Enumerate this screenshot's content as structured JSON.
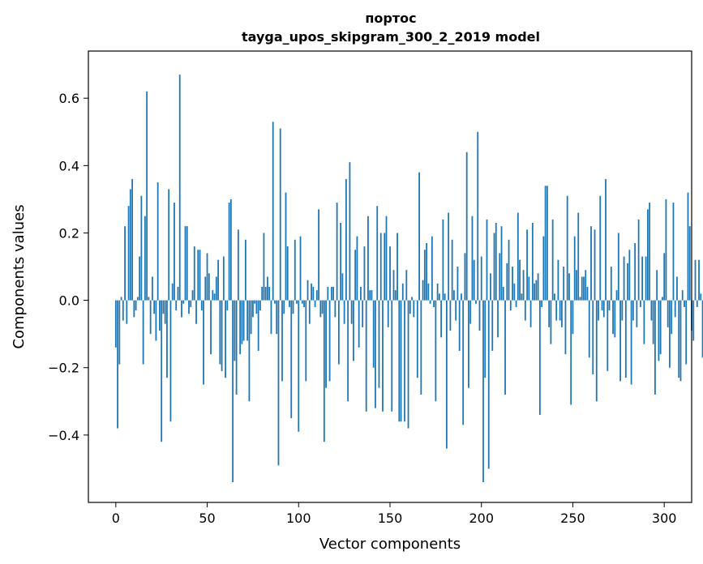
{
  "chart_data": {
    "type": "bar",
    "title": "портос",
    "subtitle": "tayga_upos_skipgram_300_2_2019 model",
    "xlabel": "Vector components",
    "ylabel": "Components values",
    "xlim": [
      -15,
      315
    ],
    "ylim": [
      -0.6,
      0.74
    ],
    "xticks": [
      0,
      50,
      100,
      150,
      200,
      250,
      300
    ],
    "yticks": [
      -0.4,
      -0.2,
      0.0,
      0.2,
      0.4,
      0.6
    ],
    "ytick_labels": [
      "−0.4",
      "−0.2",
      "0.0",
      "0.2",
      "0.4",
      "0.6"
    ],
    "bar_color": "#1f77b4",
    "series": [
      {
        "name": "портос",
        "values": [
          -0.14,
          -0.38,
          -0.19,
          0.01,
          -0.06,
          0.22,
          -0.07,
          0.28,
          0.33,
          0.36,
          -0.05,
          -0.03,
          0.01,
          0.13,
          0.31,
          -0.19,
          0.25,
          0.62,
          0.01,
          -0.1,
          0.07,
          -0.04,
          -0.12,
          0.35,
          -0.09,
          -0.42,
          -0.04,
          -0.07,
          -0.23,
          0.33,
          -0.36,
          0.05,
          0.29,
          -0.03,
          0.04,
          0.67,
          -0.05,
          -0.01,
          0.22,
          0.22,
          -0.04,
          -0.02,
          0.03,
          0.16,
          -0.07,
          0.15,
          0.15,
          -0.03,
          -0.25,
          0.07,
          0.14,
          0.08,
          -0.16,
          0.03,
          0.02,
          0.07,
          0.12,
          -0.19,
          -0.21,
          0.13,
          -0.23,
          -0.03,
          0.29,
          0.3,
          -0.54,
          -0.18,
          -0.28,
          0.21,
          -0.16,
          -0.13,
          -0.12,
          0.18,
          -0.12,
          -0.3,
          -0.1,
          -0.05,
          -0.01,
          -0.04,
          -0.15,
          -0.03,
          0.04,
          0.2,
          0.04,
          0.07,
          0.04,
          -0.1,
          0.53,
          -0.01,
          -0.1,
          -0.49,
          0.51,
          -0.24,
          -0.04,
          0.32,
          0.16,
          -0.02,
          -0.35,
          -0.04,
          0.18,
          -0.01,
          -0.39,
          0.19,
          -0.01,
          -0.02,
          -0.24,
          0.06,
          -0.07,
          0.05,
          0.04,
          -0.02,
          0.03,
          0.27,
          -0.05,
          -0.04,
          -0.42,
          -0.26,
          0.04,
          -0.24,
          0.04,
          0.04,
          -0.05,
          0.29,
          -0.19,
          0.23,
          0.08,
          -0.07,
          0.36,
          -0.3,
          0.41,
          -0.07,
          -0.18,
          0.15,
          0.19,
          -0.14,
          0.04,
          -0.08,
          0.16,
          -0.33,
          0.25,
          0.03,
          0.03,
          -0.2,
          -0.32,
          0.28,
          -0.26,
          0.2,
          -0.33,
          0.2,
          0.25,
          -0.08,
          0.16,
          -0.33,
          0.09,
          0.03,
          0.2,
          -0.36,
          -0.36,
          0.05,
          -0.36,
          0.09,
          -0.38,
          -0.04,
          0.01,
          -0.05,
          0.0,
          -0.23,
          0.38,
          -0.28,
          0.06,
          0.15,
          0.17,
          0.05,
          -0.01,
          0.19,
          -0.02,
          -0.3,
          0.05,
          0.02,
          -0.11,
          0.24,
          0.02,
          -0.44,
          0.26,
          -0.09,
          0.18,
          0.03,
          -0.06,
          0.1,
          -0.15,
          0.02,
          -0.37,
          0.14,
          0.44,
          -0.26,
          -0.07,
          0.25,
          0.12,
          -0.01,
          0.5,
          -0.09,
          0.13,
          -0.54,
          -0.23,
          0.24,
          -0.5,
          0.08,
          -0.15,
          0.2,
          0.23,
          -0.11,
          0.14,
          0.22,
          0.04,
          -0.28,
          0.11,
          0.18,
          -0.03,
          0.1,
          0.05,
          -0.02,
          0.26,
          0.12,
          0.02,
          0.09,
          -0.06,
          0.21,
          0.07,
          -0.08,
          0.23,
          0.05,
          0.06,
          0.08,
          -0.34,
          -0.02,
          0.19,
          0.34,
          0.34,
          -0.08,
          -0.13,
          0.24,
          0.02,
          -0.06,
          0.12,
          -0.06,
          -0.08,
          0.1,
          -0.16,
          0.31,
          0.08,
          -0.31,
          -0.1,
          0.19,
          0.09,
          0.26,
          0.01,
          0.07,
          0.07,
          0.09,
          0.04,
          -0.17,
          0.22,
          -0.22,
          0.21,
          -0.3,
          -0.06,
          0.31,
          -0.03,
          -0.05,
          0.36,
          -0.21,
          -0.03,
          0.1,
          -0.1,
          -0.11,
          0.03,
          0.2,
          -0.24,
          -0.06,
          0.13,
          -0.23,
          0.11,
          0.15,
          -0.25,
          -0.06,
          0.17,
          -0.08,
          0.24,
          -0.02,
          0.13,
          -0.13,
          0.13,
          0.27,
          0.29,
          -0.06,
          -0.13,
          -0.28,
          0.09,
          -0.18,
          -0.16,
          0.01,
          0.14,
          0.3,
          -0.08,
          -0.2,
          -0.1,
          0.29,
          -0.05,
          0.07,
          -0.23,
          -0.24,
          0.03,
          -0.02,
          -0.19,
          0.32,
          0.22,
          -0.09,
          -0.12,
          0.12,
          -0.02,
          0.12,
          0.02,
          -0.17
        ]
      }
    ]
  }
}
